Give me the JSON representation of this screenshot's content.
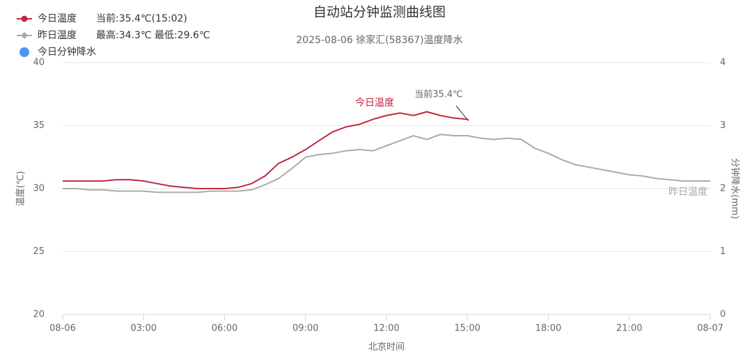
{
  "chart_data": {
    "type": "line",
    "title": "自动站分钟监测曲线图",
    "subtitle": "2025-08-06 徐家汇(58367)温度降水",
    "x_label": "北京时间",
    "y_label": "温度(℃)",
    "y2_label": "分钟降水(mm)",
    "xlim": [
      0,
      24
    ],
    "xticks": [
      {
        "value": 0,
        "label": "08-06"
      },
      {
        "value": 3,
        "label": "03:00"
      },
      {
        "value": 6,
        "label": "06:00"
      },
      {
        "value": 9,
        "label": "09:00"
      },
      {
        "value": 12,
        "label": "12:00"
      },
      {
        "value": 15,
        "label": "15:00"
      },
      {
        "value": 18,
        "label": "18:00"
      },
      {
        "value": 21,
        "label": "21:00"
      },
      {
        "value": 24,
        "label": "08-07"
      }
    ],
    "ylim": [
      20,
      40
    ],
    "yticks": [
      20,
      25,
      30,
      35,
      40
    ],
    "y2lim": [
      0,
      4
    ],
    "y2ticks": [
      0,
      1,
      2,
      3,
      4
    ],
    "grid": true,
    "annotations": [
      "今日温度",
      "当前35.4℃",
      "昨日温度"
    ],
    "series": [
      {
        "name": "今日温度",
        "color": "#c0283e",
        "legend_note": "当前:35.4℃(15:02)",
        "x": [
          0,
          0.5,
          1,
          1.5,
          2,
          2.5,
          3,
          3.5,
          4,
          4.5,
          5,
          5.5,
          6,
          6.5,
          7,
          7.5,
          8,
          8.5,
          9,
          9.5,
          10,
          10.5,
          11,
          11.5,
          12,
          12.5,
          13,
          13.5,
          14,
          14.5,
          15,
          15.03
        ],
        "values": [
          30.6,
          30.6,
          30.6,
          30.6,
          30.7,
          30.7,
          30.6,
          30.4,
          30.2,
          30.1,
          30.0,
          30.0,
          30.0,
          30.1,
          30.4,
          31.0,
          32.0,
          32.5,
          33.1,
          33.8,
          34.5,
          34.9,
          35.1,
          35.5,
          35.8,
          36.0,
          35.8,
          36.1,
          35.8,
          35.6,
          35.5,
          35.4
        ]
      },
      {
        "name": "昨日温度",
        "color": "#aaaaaa",
        "legend_note": "最高:34.3℃ 最低:29.6℃",
        "x": [
          0,
          0.5,
          1,
          1.5,
          2,
          2.5,
          3,
          3.5,
          4,
          4.5,
          5,
          5.5,
          6,
          6.5,
          7,
          7.5,
          8,
          8.5,
          9,
          9.5,
          10,
          10.5,
          11,
          11.5,
          12,
          12.5,
          13,
          13.5,
          14,
          14.5,
          15,
          15.5,
          16,
          16.5,
          17,
          17.5,
          18,
          18.5,
          19,
          19.5,
          20,
          20.5,
          21,
          21.5,
          22,
          22.5,
          23,
          23.5,
          24
        ],
        "values": [
          30.0,
          30.0,
          29.9,
          29.9,
          29.8,
          29.8,
          29.8,
          29.7,
          29.7,
          29.7,
          29.7,
          29.8,
          29.8,
          29.8,
          29.9,
          30.3,
          30.8,
          31.6,
          32.5,
          32.7,
          32.8,
          33.0,
          33.1,
          33.0,
          33.4,
          33.8,
          34.2,
          33.9,
          34.3,
          34.2,
          34.2,
          34.0,
          33.9,
          34.0,
          33.9,
          33.2,
          32.8,
          32.3,
          31.9,
          31.7,
          31.5,
          31.3,
          31.1,
          31.0,
          30.8,
          30.7,
          30.6,
          30.6,
          30.6
        ]
      },
      {
        "name": "今日分钟降水",
        "color": "#4f94f0",
        "axis": "y2",
        "x": [],
        "values": []
      }
    ]
  }
}
